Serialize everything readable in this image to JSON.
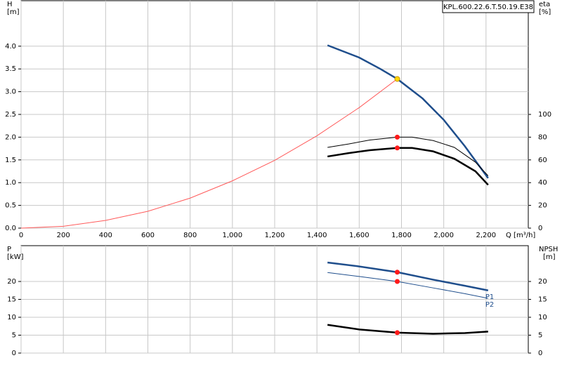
{
  "chart_data": [
    {
      "type": "line",
      "model": "KPL.600.22.6.T.50.19.E38",
      "ylabel": "H",
      "yunit": "[m]",
      "y2label": "eta",
      "y2unit": "[%]",
      "xlabel": "Q [m³/h]",
      "xlim": [
        0,
        2400
      ],
      "xticks": [
        0,
        200,
        400,
        600,
        800,
        {
          "value": 1000,
          "label": "1,000"
        },
        {
          "value": 1200,
          "label": "1,200"
        },
        {
          "value": 1400,
          "label": "1,400"
        },
        {
          "value": 1600,
          "label": "1,600"
        },
        {
          "value": 1800,
          "label": "1,800"
        },
        {
          "value": 2000,
          "label": "2,000"
        },
        {
          "value": 2200,
          "label": "2,200"
        }
      ],
      "ylim": [
        0,
        5
      ],
      "yticks": [
        {
          "value": 0,
          "label": "0.0"
        },
        {
          "value": 0.5,
          "label": "0.5"
        },
        {
          "value": 1,
          "label": "1.0"
        },
        {
          "value": 1.5,
          "label": "1.5"
        },
        {
          "value": 2,
          "label": "2.0"
        },
        {
          "value": 2.5,
          "label": "2.5"
        },
        {
          "value": 3,
          "label": "3.0"
        },
        {
          "value": 3.5,
          "label": "3.5"
        },
        {
          "value": 4,
          "label": "4.0"
        }
      ],
      "y2lim": [
        0,
        200
      ],
      "y2ticks": [
        0,
        20,
        40,
        60,
        80,
        100
      ],
      "grid": true,
      "show_xtick_labels": true,
      "series": [
        {
          "color": "#1f4e8c",
          "width": 2.5,
          "x": [
            1450,
            1600,
            1700,
            1780,
            1900,
            2000,
            2100,
            2210
          ],
          "values": [
            4.02,
            3.75,
            3.5,
            3.28,
            2.85,
            2.38,
            1.8,
            1.1
          ]
        },
        {
          "color": "#ff5a5a",
          "width": 1,
          "x": [
            0,
            200,
            400,
            600,
            800,
            1000,
            1200,
            1400,
            1600,
            1780
          ],
          "values": [
            0,
            0.04,
            0.17,
            0.37,
            0.66,
            1.04,
            1.49,
            2.03,
            2.65,
            3.28
          ]
        },
        {
          "color": "#000000",
          "width": 1,
          "axis": "y2",
          "x": [
            1450,
            1550,
            1650,
            1780,
            1850,
            1950,
            2050,
            2150,
            2210
          ],
          "values": [
            71,
            74,
            77.5,
            80,
            80,
            77,
            71,
            58,
            46
          ]
        },
        {
          "color": "#000000",
          "width": 2.5,
          "axis": "y2",
          "x": [
            1450,
            1550,
            1650,
            1780,
            1850,
            1950,
            2050,
            2150,
            2210
          ],
          "values": [
            63,
            66,
            68.5,
            70.5,
            70.5,
            67.5,
            61,
            50,
            38
          ]
        },
        {
          "color": "#ffd700",
          "marker": true,
          "x": [
            1780
          ],
          "values": [
            3.28
          ]
        },
        {
          "color": "#ff1a1a",
          "marker": true,
          "axis": "y2",
          "x": [
            1780,
            1780
          ],
          "values": [
            80,
            70.5
          ]
        }
      ]
    },
    {
      "type": "line",
      "ylabel": "P",
      "yunit": "[kW]",
      "y2label": "NPSH",
      "y2unit": "[m]",
      "xlim": [
        0,
        2400
      ],
      "xticks": [
        0,
        200,
        400,
        600,
        800,
        1000,
        1200,
        1400,
        1600,
        1800,
        2000,
        2200
      ],
      "ylim": [
        0,
        30
      ],
      "yticks": [
        0,
        5,
        10,
        15,
        20
      ],
      "y2lim": [
        0,
        30
      ],
      "y2ticks": [
        0,
        5,
        10,
        15,
        20
      ],
      "grid": true,
      "show_xtick_labels": false,
      "series": [
        {
          "name": "P1",
          "color": "#1f4e8c",
          "width": 2.5,
          "x": [
            1450,
            1600,
            1780,
            1950,
            2100,
            2210
          ],
          "values": [
            25.3,
            24.2,
            22.6,
            20.5,
            18.8,
            17.5
          ]
        },
        {
          "name": "P2",
          "color": "#1f4e8c",
          "width": 1,
          "x": [
            1450,
            1600,
            1780,
            1950,
            2100,
            2210
          ],
          "values": [
            22.5,
            21.4,
            20,
            18.2,
            16.6,
            15.3
          ]
        },
        {
          "color": "#000000",
          "width": 2.5,
          "axis": "y2",
          "x": [
            1450,
            1600,
            1780,
            1950,
            2100,
            2210
          ],
          "values": [
            7.9,
            6.6,
            5.7,
            5.4,
            5.6,
            6.0
          ]
        },
        {
          "color": "#ff1a1a",
          "marker": true,
          "x": [
            1780,
            1780
          ],
          "values": [
            22.6,
            20
          ]
        },
        {
          "color": "#ff1a1a",
          "marker": true,
          "axis": "y2",
          "x": [
            1780
          ],
          "values": [
            5.7
          ]
        }
      ]
    }
  ]
}
